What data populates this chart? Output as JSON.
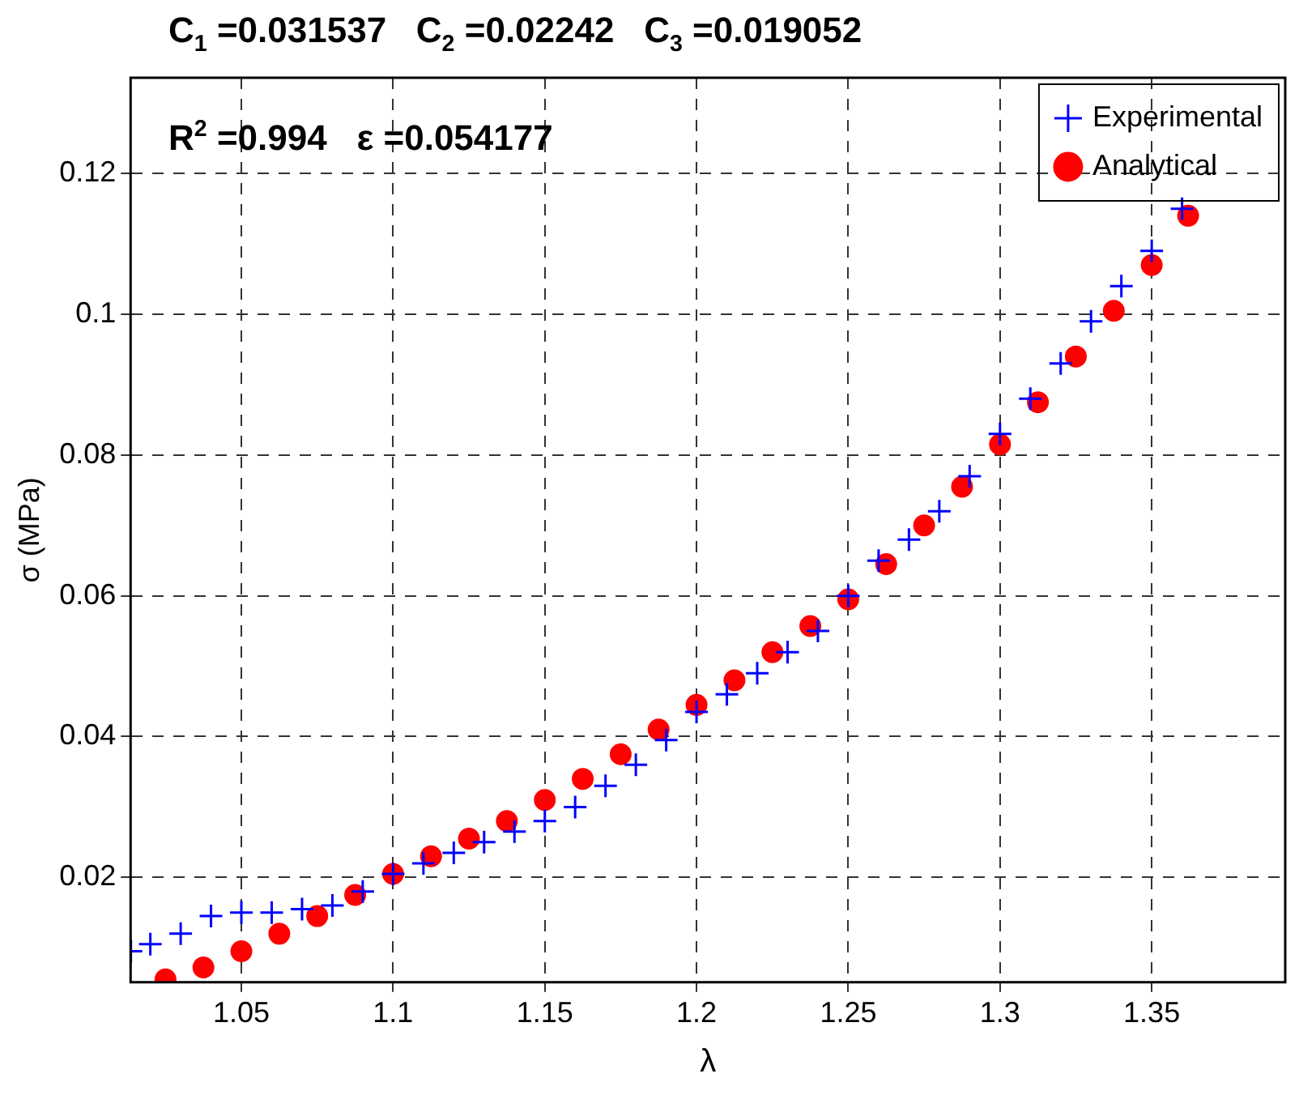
{
  "chart_data": {
    "type": "scatter",
    "title": "C$_{1}$ =0.031537   C$_{2}$ =0.02242   C$_{3}$ =0.019052",
    "annotations": [
      "R$^{2}$ =0.994   ε =0.054177"
    ],
    "xlabel": "λ",
    "ylabel": "σ (MPa)",
    "xlim": [
      1.0135,
      1.394
    ],
    "xticks": [
      1.05,
      1.1,
      1.15,
      1.2,
      1.25,
      1.3,
      1.35
    ],
    "ylim": [
      0.0051,
      0.1336
    ],
    "yticks": [
      0.02,
      0.04,
      0.06,
      0.08,
      0.1,
      0.12
    ],
    "grid": true,
    "legend": "top right",
    "series": [
      {
        "name": "Experimental",
        "color": "#0000ff",
        "marker": "cross",
        "x": [
          1.0136,
          1.02,
          1.03,
          1.04,
          1.05,
          1.06,
          1.07,
          1.08,
          1.09,
          1.1,
          1.11,
          1.12,
          1.13,
          1.14,
          1.15,
          1.16,
          1.17,
          1.18,
          1.19,
          1.2,
          1.21,
          1.22,
          1.23,
          1.24,
          1.25,
          1.26,
          1.27,
          1.28,
          1.29,
          1.3,
          1.31,
          1.32,
          1.33,
          1.34,
          1.35,
          1.36
        ],
        "values": [
          0.0095,
          0.0105,
          0.012,
          0.0145,
          0.015,
          0.015,
          0.0155,
          0.016,
          0.018,
          0.0205,
          0.022,
          0.0235,
          0.025,
          0.0265,
          0.028,
          0.03,
          0.033,
          0.036,
          0.0395,
          0.0435,
          0.046,
          0.049,
          0.052,
          0.055,
          0.06,
          0.065,
          0.068,
          0.072,
          0.077,
          0.083,
          0.088,
          0.093,
          0.099,
          0.104,
          0.109,
          0.115
        ]
      },
      {
        "name": "Analytical",
        "color": "#ff0000",
        "marker": "circle",
        "x": [
          1.025,
          1.0375,
          1.05,
          1.0625,
          1.075,
          1.0875,
          1.1,
          1.1125,
          1.125,
          1.1375,
          1.15,
          1.1625,
          1.175,
          1.1875,
          1.2,
          1.2125,
          1.225,
          1.2375,
          1.25,
          1.2625,
          1.275,
          1.2875,
          1.3,
          1.3125,
          1.325,
          1.3375,
          1.35,
          1.362
        ],
        "values": [
          0.0055,
          0.0072,
          0.0095,
          0.012,
          0.0145,
          0.0175,
          0.0205,
          0.023,
          0.0255,
          0.028,
          0.031,
          0.034,
          0.0375,
          0.041,
          0.0445,
          0.048,
          0.052,
          0.0557,
          0.0595,
          0.0645,
          0.07,
          0.0755,
          0.0815,
          0.0875,
          0.094,
          0.1005,
          0.107,
          0.114
        ]
      }
    ]
  }
}
